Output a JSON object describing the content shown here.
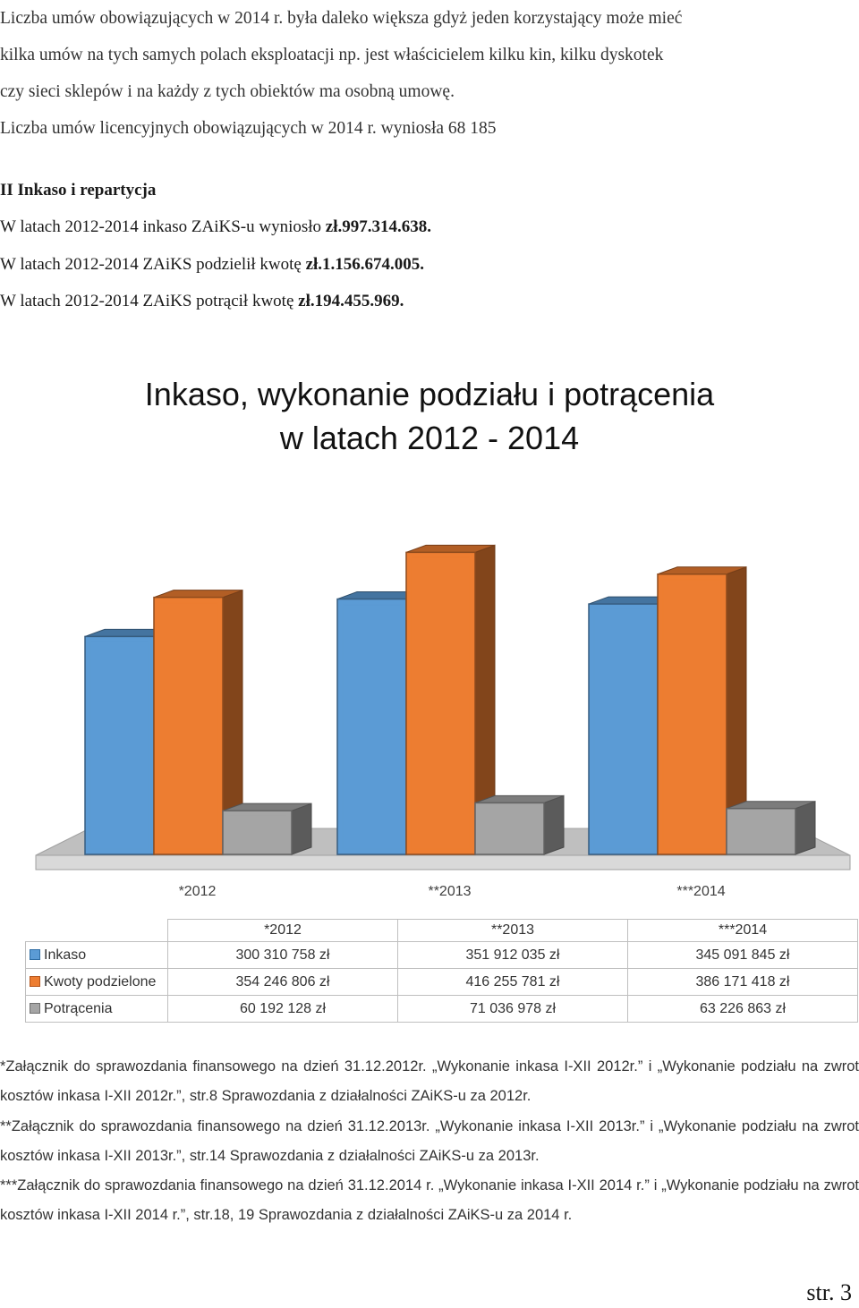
{
  "intro": {
    "lines": [
      "Liczba umów obowiązujących w 2014 r. była daleko większa gdyż jeden korzystający może mieć",
      "kilka umów na tych samych polach eksploatacji np. jest właścicielem kilku kin, kilku dyskotek",
      "czy sieci sklepów i na każdy z tych obiektów ma osobną umowę.",
      "Liczba umów licencyjnych obowiązujących w 2014 r. wyniosła 68 185"
    ]
  },
  "section": {
    "heading": "II Inkaso i repartycja",
    "inkaso_text": "W latach 2012-2014 inkaso ZAiKS-u wyniosło ",
    "inkaso_amount": "zł.997.314.638.",
    "podzial_text": "W latach 2012-2014 ZAiKS podzielił kwotę ",
    "podzial_amount": "zł.1.156.674.005.",
    "potracenia_text": "W latach 2012-2014 ZAiKS potrącił kwotę ",
    "potracenia_amount": "zł.194.455.969."
  },
  "chart_data": {
    "type": "bar",
    "title": "Inkaso, wykonanie podziału i potrącenia",
    "subtitle": "w latach 2012 - 2014",
    "categories": [
      "*2012",
      "**2013",
      "***2014"
    ],
    "series": [
      {
        "name": "Inkaso",
        "values": [
          300310758,
          351912035,
          345091845
        ],
        "color": "#5b9bd5"
      },
      {
        "name": "Kwoty podzielone",
        "values": [
          354246806,
          416255781,
          386171418
        ],
        "color": "#ed7d31"
      },
      {
        "name": "Potrącenia",
        "values": [
          60192128,
          71036978,
          63226863
        ],
        "color": "#a5a5a5"
      }
    ],
    "ylim": [
      0,
      450000000
    ],
    "legend": "table-below",
    "grid": false
  },
  "table": {
    "headers": [
      "*2012",
      "**2013",
      "***2014"
    ],
    "rows": [
      {
        "label": "Inkaso",
        "values": [
          "300 310 758 zł",
          "351 912 035 zł",
          "345 091 845 zł"
        ]
      },
      {
        "label": "Kwoty podzielone",
        "values": [
          "354 246 806 zł",
          "416 255 781 zł",
          "386 171 418 zł"
        ]
      },
      {
        "label": "Potrącenia",
        "values": [
          "60 192 128 zł",
          "71 036 978 zł",
          "63 226 863 zł"
        ]
      }
    ]
  },
  "footnotes": [
    "*Załącznik do sprawozdania finansowego na dzień 31.12.2012r. „Wykonanie inkasa I-XII 2012r.” i „Wykonanie podziału na zwrot kosztów inkasa I-XII 2012r.”, str.8 Sprawozdania z działalności ZAiKS-u za 2012r.",
    "**Załącznik do sprawozdania finansowego na dzień 31.12.2013r. „Wykonanie inkasa I-XII 2013r.” i „Wykonanie podziału na zwrot kosztów inkasa I-XII 2013r.”, str.14 Sprawozdania z działalności ZAiKS-u za 2013r.",
    "***Załącznik do sprawozdania finansowego na dzień 31.12.2014 r. „Wykonanie inkasa I-XII 2014 r.” i „Wykonanie podziału na zwrot kosztów inkasa I-XII 2014 r.”, str.18, 19 Sprawozdania z działalności ZAiKS-u za 2014 r."
  ],
  "page_number": "str. 3"
}
